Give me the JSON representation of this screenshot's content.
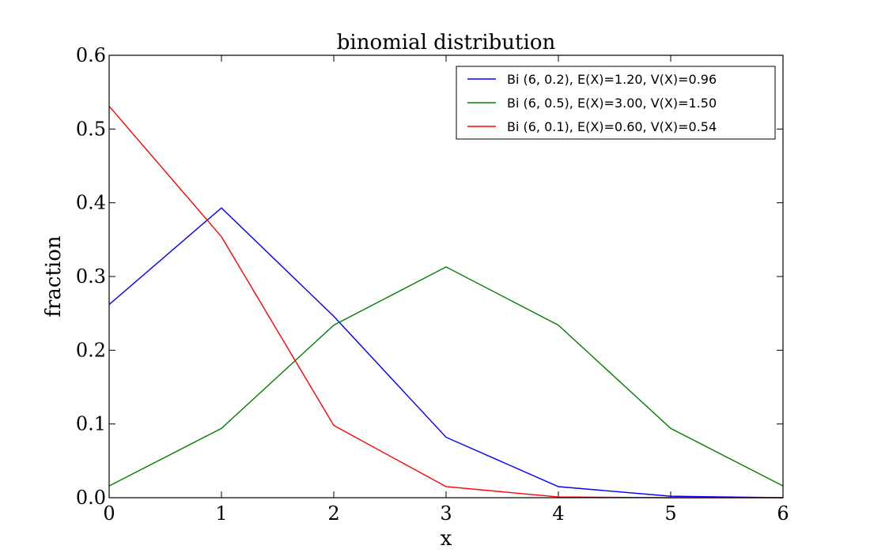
{
  "chart_data": {
    "type": "line",
    "title": "binomial distribution",
    "xlabel": "x",
    "ylabel": "fraction",
    "xlim": [
      0,
      6
    ],
    "ylim": [
      0,
      0.6
    ],
    "xticks": [
      "0",
      "1",
      "2",
      "3",
      "4",
      "5",
      "6"
    ],
    "yticks": [
      "0.0",
      "0.1",
      "0.2",
      "0.3",
      "0.4",
      "0.5",
      "0.6"
    ],
    "grid": false,
    "legend_position": "top-right",
    "x": [
      0,
      1,
      2,
      3,
      4,
      5,
      6
    ],
    "series": [
      {
        "name": "Bi (6, 0.2), E(X)=1.20, V(X)=0.96",
        "color": "#0000ff",
        "values": [
          0.262,
          0.393,
          0.246,
          0.082,
          0.015,
          0.002,
          0.0
        ]
      },
      {
        "name": "Bi (6, 0.5), E(X)=3.00, V(X)=1.50",
        "color": "#008000",
        "values": [
          0.016,
          0.094,
          0.234,
          0.313,
          0.234,
          0.094,
          0.016
        ]
      },
      {
        "name": "Bi (6, 0.1), E(X)=0.60, V(X)=0.54",
        "color": "#ff0000",
        "values": [
          0.531,
          0.354,
          0.098,
          0.015,
          0.001,
          0.0,
          0.0
        ]
      }
    ]
  }
}
